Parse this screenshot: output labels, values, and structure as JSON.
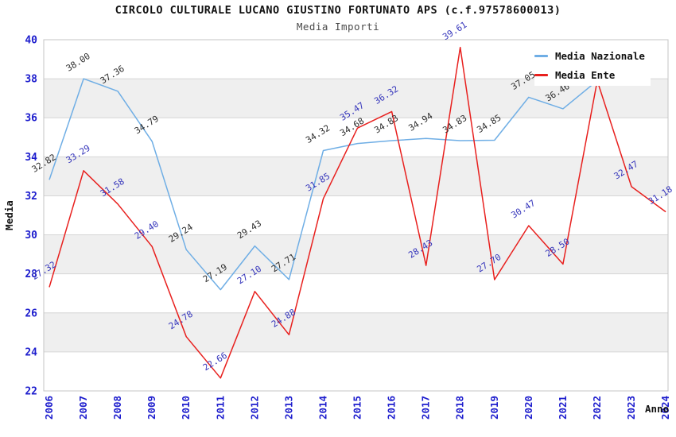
{
  "title": "CIRCOLO CULTURALE LUCANO GIUSTINO FORTUNATO APS (c.f.97578600013)",
  "subtitle": "Media Importi",
  "legend": {
    "position": "top-right",
    "items": [
      {
        "label": "Media Nazionale",
        "color": "#6FAEE5"
      },
      {
        "label": "Media Ente",
        "color": "#E8201E"
      }
    ]
  },
  "chart_data": {
    "type": "line",
    "title": "CIRCOLO CULTURALE LUCANO GIUSTINO FORTUNATO APS (c.f.97578600013)",
    "subtitle": "Media Importi",
    "xlabel": "Anno",
    "ylabel": "Media",
    "ylim": [
      22,
      40
    ],
    "yticks": [
      22,
      24,
      26,
      28,
      30,
      32,
      34,
      36,
      38,
      40
    ],
    "x": [
      2006,
      2007,
      2008,
      2009,
      2010,
      2011,
      2012,
      2013,
      2014,
      2015,
      2016,
      2017,
      2018,
      2019,
      2020,
      2021,
      2022,
      2023,
      2024
    ],
    "grid": "horizontal gridlines with alternating gray bands",
    "legend_position": "top-right",
    "series": [
      {
        "name": "Media Nazionale",
        "color": "#6FAEE5",
        "label_color": "#2d2d2d",
        "x": [
          2006,
          2007,
          2008,
          2009,
          2010,
          2011,
          2012,
          2013,
          2014,
          2015,
          2016,
          2017,
          2018,
          2019,
          2020,
          2021,
          2022
        ],
        "values": [
          32.82,
          38.0,
          37.36,
          34.79,
          29.24,
          27.19,
          29.43,
          27.71,
          34.32,
          34.68,
          34.83,
          34.94,
          34.83,
          34.85,
          37.05,
          36.46,
          37.9
        ],
        "labels": [
          "32.82",
          "38.00",
          "37.36",
          "34.79",
          "29.24",
          "27.19",
          "29.43",
          "27.71",
          "34.32",
          "34.68",
          "34.83",
          "34.94",
          "34.83",
          "34.85",
          "37.05",
          "36.46",
          "37.90"
        ]
      },
      {
        "name": "Media Ente",
        "color": "#E8201E",
        "label_color": "#3434bb",
        "x": [
          2006,
          2007,
          2008,
          2009,
          2010,
          2011,
          2012,
          2013,
          2014,
          2015,
          2016,
          2017,
          2018,
          2019,
          2020,
          2021,
          2022,
          2023,
          2024
        ],
        "values": [
          27.32,
          33.29,
          31.58,
          29.4,
          24.78,
          22.66,
          27.1,
          24.88,
          31.85,
          35.47,
          36.32,
          28.43,
          39.61,
          27.7,
          30.47,
          28.5,
          37.9,
          32.47,
          31.18
        ],
        "labels": [
          "27.32",
          "33.29",
          "31.58",
          "29.40",
          "24.78",
          "22.66",
          "27.10",
          "24.88",
          "31.85",
          "35.47",
          "36.32",
          "28.43",
          "39.61",
          "27.70",
          "30.47",
          "28.50",
          "37.90",
          "32.47",
          "31.18"
        ]
      }
    ]
  },
  "colors": {
    "stripe_band": "#efefef",
    "gridline": "#d6d6d6",
    "plot_border": "#c4c4c4",
    "tick_text": "#1c1ccd",
    "title_text": "#111111",
    "subtitle_text": "#4a4a4a"
  }
}
